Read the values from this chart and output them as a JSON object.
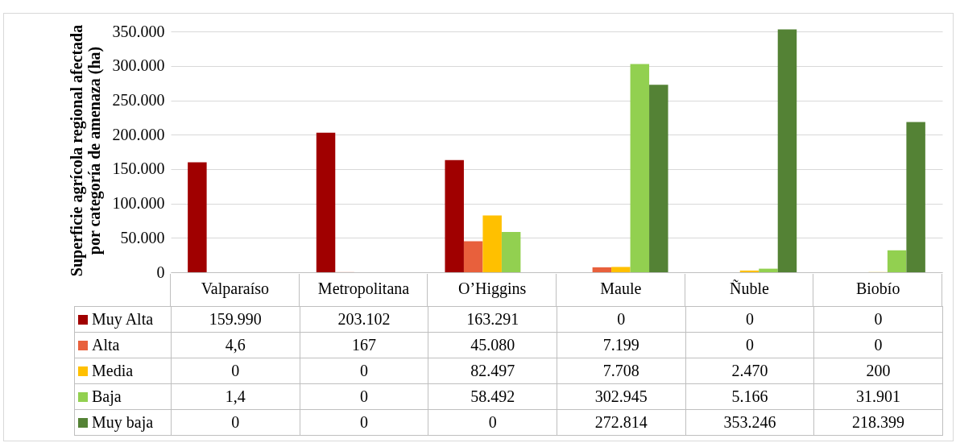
{
  "chart_data": {
    "type": "bar",
    "ylabel": "Superficie agrícola regional afectada\npor categoría de amenaza (ha)",
    "categories": [
      "Valparaíso",
      "Metropolitana",
      "O’Higgins",
      "Maule",
      "Ñuble",
      "Biobío"
    ],
    "series": [
      {
        "name": "Muy Alta",
        "color": "#a00000",
        "values": [
          159990,
          203102,
          163291,
          0,
          0,
          0
        ],
        "value_labels": [
          "159.990",
          "203.102",
          "163.291",
          "0",
          "0",
          "0"
        ]
      },
      {
        "name": "Alta",
        "color": "#e8603c",
        "values": [
          4.6,
          167,
          45080,
          7199,
          0,
          0
        ],
        "value_labels": [
          "4,6",
          "167",
          "45.080",
          "7.199",
          "0",
          "0"
        ]
      },
      {
        "name": "Media",
        "color": "#ffc000",
        "values": [
          0,
          0,
          82497,
          7708,
          2470,
          200
        ],
        "value_labels": [
          "0",
          "0",
          "82.497",
          "7.708",
          "2.470",
          "200"
        ]
      },
      {
        "name": "Baja",
        "color": "#92d050",
        "values": [
          1.4,
          0,
          58492,
          302945,
          5166,
          31901
        ],
        "value_labels": [
          "1,4",
          "0",
          "58.492",
          "302.945",
          "5.166",
          "31.901"
        ]
      },
      {
        "name": "Muy baja",
        "color": "#548235",
        "values": [
          0,
          0,
          0,
          272814,
          353246,
          218399
        ],
        "value_labels": [
          "0",
          "0",
          "0",
          "272.814",
          "353.246",
          "218.399"
        ]
      }
    ],
    "ylim": [
      0,
      355000
    ],
    "yticks": [
      0,
      {
        "value": 50000,
        "label": "50.000"
      },
      {
        "value": 100000,
        "label": "100.000"
      },
      {
        "value": 150000,
        "label": "150.000"
      },
      {
        "value": 200000,
        "label": "200.000"
      },
      {
        "value": 250000,
        "label": "250.000"
      },
      {
        "value": 300000,
        "label": "300.000"
      },
      {
        "value": 350000,
        "label": "350.000"
      }
    ],
    "grid": "y",
    "legend": "bottom"
  }
}
